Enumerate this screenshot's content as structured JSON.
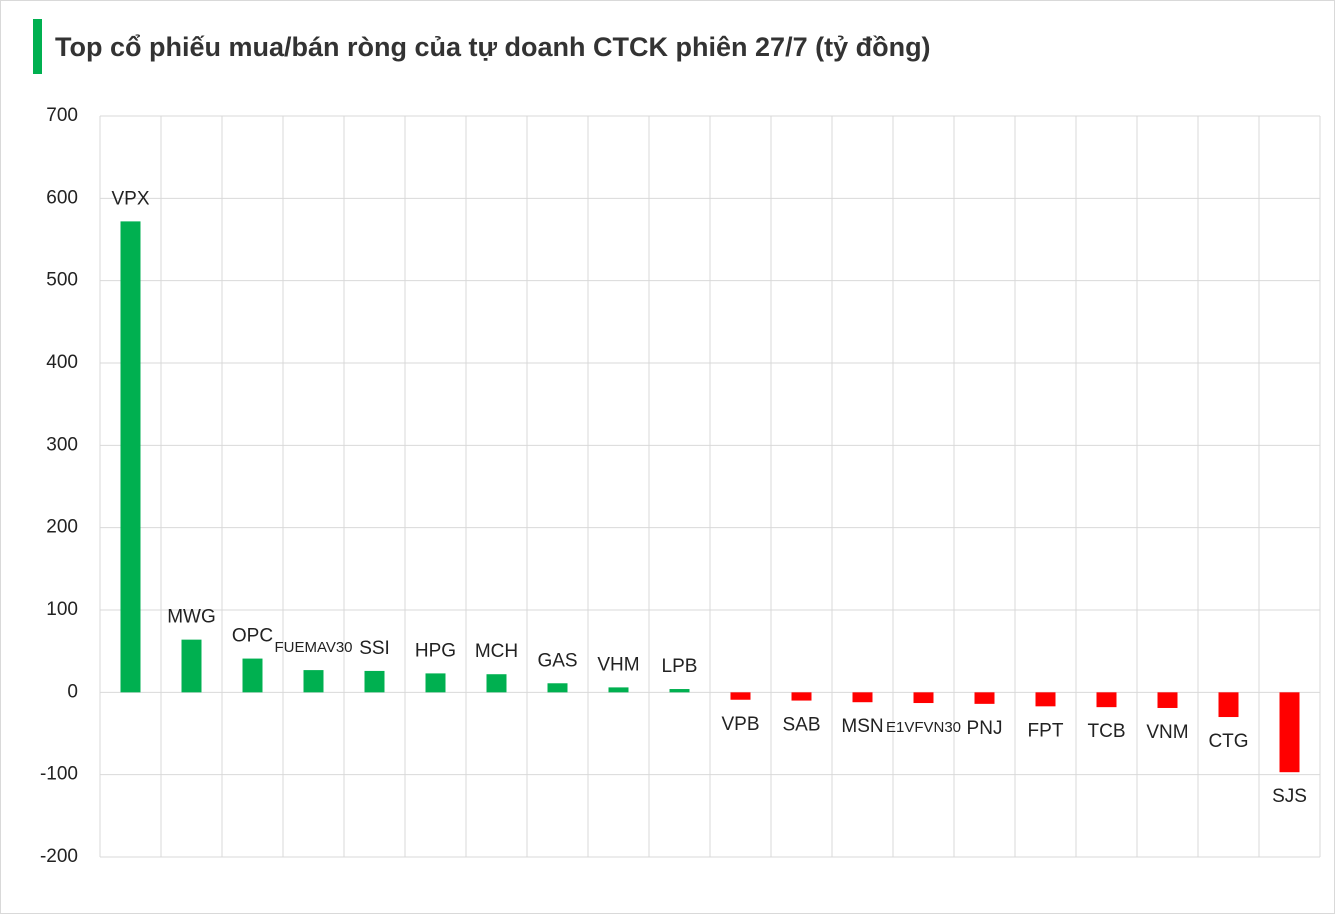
{
  "chart_data": {
    "type": "bar",
    "title": "Top cổ phiếu mua/bán ròng của tự doanh CTCK phiên 27/7 (tỷ đồng)",
    "categories": [
      "VPX",
      "MWG",
      "OPC",
      "FUEMAV30",
      "SSI",
      "HPG",
      "MCH",
      "GAS",
      "VHM",
      "LPB",
      "VPB",
      "SAB",
      "MSN",
      "E1VFVN30",
      "PNJ",
      "FPT",
      "TCB",
      "VNM",
      "CTG",
      "SJS"
    ],
    "values": [
      572,
      64,
      41,
      27,
      26,
      23,
      22,
      11,
      6,
      4,
      -9,
      -10,
      -12,
      -13,
      -14,
      -17,
      -18,
      -19,
      -30,
      -97
    ],
    "positive_color": "#00b050",
    "negative_color": "#ff0000",
    "ylim": [
      -200,
      700
    ],
    "yticks": [
      -200,
      -100,
      0,
      100,
      200,
      300,
      400,
      500,
      600,
      700
    ],
    "grid": true
  }
}
